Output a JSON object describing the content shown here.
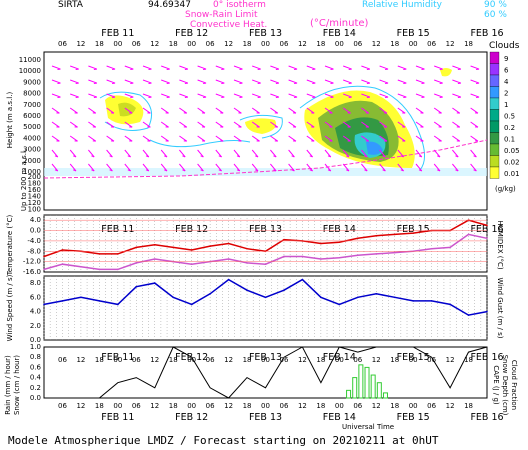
{
  "header": {
    "station": "SIRTA",
    "coord": "94.69347",
    "legend_isotherm": "0° isotherm",
    "legend_isotherm_color": "#ff33cc",
    "legend_snowrain": "Snow-Rain Limit",
    "legend_convective": "Convective Heat.",
    "legend_convective_units": "(°C/minute)",
    "legend_rh": "Relative Humidity",
    "rh_90": "90 %",
    "rh_60": "60 %",
    "rh_color": "#33ccff"
  },
  "time_axis": {
    "hours": [
      "06",
      "12",
      "18",
      "00",
      "06",
      "12",
      "18",
      "00",
      "06",
      "12",
      "18",
      "00",
      "06",
      "12",
      "18",
      "00",
      "06",
      "12",
      "18",
      "00",
      "06",
      "12",
      "18"
    ],
    "days": [
      "FEB 11",
      "FEB 12",
      "FEB 13",
      "FEB 14",
      "FEB 15",
      "FEB 16"
    ],
    "xlabel": "Universal Time"
  },
  "clouds_legend": {
    "title": "Clouds",
    "units": "(g/kg)",
    "levels": [
      "9",
      "6",
      "4",
      "2",
      "1",
      "0.5",
      "0.2",
      "0.1",
      "0.05",
      "0.02",
      "0.01"
    ],
    "colors": [
      "#cc00cc",
      "#9933ff",
      "#6666ff",
      "#3399ff",
      "#33cccc",
      "#00aa88",
      "#009966",
      "#339944",
      "#66bb33",
      "#bbdd22",
      "#ffff33"
    ]
  },
  "footer": {
    "text": "Modele Atmospherique LMDZ / Forecast starting on 20210211 at 0hUT"
  },
  "chart_data": [
    {
      "type": "area",
      "title": "",
      "ylabel": "Height (m a.s.l.)",
      "ylabel_low": "Up to 200 m a.s.l.",
      "y_ticks": [
        "11000",
        "10000",
        "9000",
        "8000",
        "7000",
        "6000",
        "5000",
        "4000",
        "3000",
        "2000",
        "1000",
        "200",
        "180",
        "160",
        "140",
        "120",
        "100"
      ],
      "ylim": [
        0,
        11000
      ]
    },
    {
      "type": "line",
      "ylabel": "Temperature (°C)",
      "y2label": "HUMIDEX (°C)",
      "y_ticks": [
        "4.0",
        "0.0",
        "-4.0",
        "-8.0",
        "-12.0",
        "-16.0"
      ],
      "ylim": [
        -16,
        6
      ],
      "series": [
        {
          "color": "#dd0000",
          "x": [
            0,
            6,
            12,
            18,
            24,
            30,
            36,
            42,
            48,
            54,
            60,
            66,
            72,
            78,
            84,
            90,
            96,
            102,
            108,
            114,
            120,
            126,
            132,
            138,
            144
          ],
          "values": [
            -10,
            -7.5,
            -8,
            -9,
            -9,
            -6.5,
            -5.5,
            -6.5,
            -7.5,
            -6,
            -5,
            -7,
            -8,
            -3.5,
            -4,
            -5,
            -4.5,
            -3,
            -2,
            -1.5,
            -1,
            0,
            0,
            4,
            2
          ]
        },
        {
          "color": "#cc55cc",
          "x": [
            0,
            6,
            12,
            18,
            24,
            30,
            36,
            42,
            48,
            54,
            60,
            66,
            72,
            78,
            84,
            90,
            96,
            102,
            108,
            114,
            120,
            126,
            132,
            138,
            144
          ],
          "values": [
            -15,
            -13,
            -14,
            -15,
            -15,
            -12.5,
            -11,
            -12,
            -13,
            -12,
            -11,
            -12.5,
            -13,
            -10,
            -10,
            -11,
            -10.5,
            -9.5,
            -9,
            -8.5,
            -8,
            -7,
            -6.5,
            -1.5,
            -3
          ]
        }
      ]
    },
    {
      "type": "line",
      "ylabel": "Wind Speed (m / s)",
      "y2label": "Wind Gust (m / s)",
      "y_ticks": [
        "8.0",
        "6.0",
        "4.0",
        "2.0",
        "0.0"
      ],
      "ylim": [
        0,
        9
      ],
      "series": [
        {
          "color": "#0000cc",
          "x": [
            0,
            6,
            12,
            18,
            24,
            30,
            36,
            42,
            48,
            54,
            60,
            66,
            72,
            78,
            84,
            90,
            96,
            102,
            108,
            114,
            120,
            126,
            132,
            138,
            144
          ],
          "values": [
            5,
            5.5,
            6,
            5.5,
            5,
            7.5,
            8,
            6,
            5,
            6.5,
            8.5,
            7,
            6,
            7,
            8.5,
            6,
            5,
            6,
            6.5,
            6,
            5.5,
            5.5,
            5,
            3.5,
            4
          ]
        }
      ]
    },
    {
      "type": "bar",
      "ylabel": "Rain (mm / hour)",
      "ylabel2": "Snow (cm / hour)",
      "y2label": "CAPE (J / g)",
      "y2label2": "Snow Depth (cm)",
      "y2label3": "Cloud Fraction",
      "y_ticks": [
        "1.0",
        "0.8",
        "0.6",
        "0.4",
        "0.2",
        "0.0"
      ],
      "ylim": [
        0,
        1
      ],
      "cloud_fraction": {
        "color": "#000000",
        "x": [
          0,
          6,
          12,
          18,
          24,
          30,
          36,
          42,
          48,
          54,
          60,
          66,
          72,
          78,
          84,
          90,
          96,
          102,
          108,
          114,
          120,
          126,
          132,
          138,
          144
        ],
        "values": [
          0,
          0,
          0,
          0,
          0.3,
          0.4,
          0.2,
          1,
          0.8,
          0.2,
          0,
          0.4,
          0.2,
          0.8,
          1,
          0.3,
          1,
          0.9,
          1,
          1,
          1,
          0.8,
          0.2,
          0.9,
          1
        ]
      },
      "rain_bars": {
        "color": "#33cc33",
        "x": [
          99,
          101,
          103,
          105,
          107,
          109,
          111
        ],
        "values": [
          0.15,
          0.4,
          0.65,
          0.6,
          0.45,
          0.3,
          0.1
        ]
      }
    }
  ]
}
